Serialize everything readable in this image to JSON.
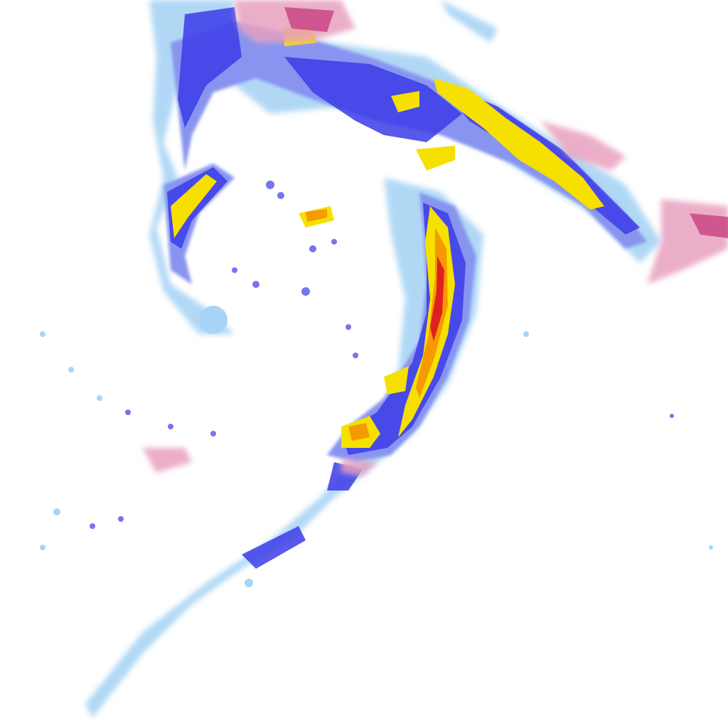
{
  "map": {
    "kind": "precipitation-radar-overlay",
    "background": "#ffffff",
    "palette": {
      "light_rain": "#a8d4f5",
      "moderate_rain": "#8894f0",
      "heavy_rain": "#3c3ce8",
      "intense": "#f5e000",
      "very_intense": "#f59a00",
      "extreme": "#e02020",
      "mixed_snow": "#e8a0c0",
      "mixed_snow_heavy": "#c84080"
    }
  }
}
